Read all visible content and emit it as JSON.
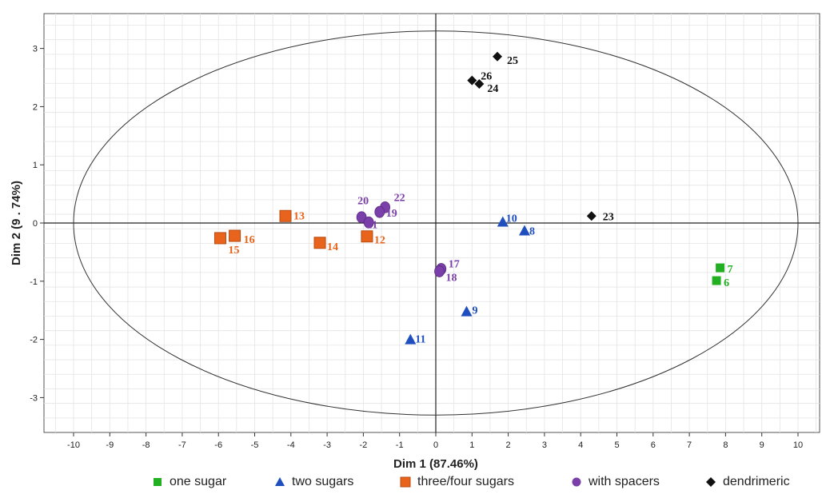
{
  "chart_data": {
    "type": "scatter",
    "title": "",
    "xlabel": "Dim 1  (87.46%)",
    "ylabel": "Dim 2 (9 . 74%)",
    "xlim": [
      -10.5,
      10.5
    ],
    "ylim": [
      -3.6,
      3.6
    ],
    "x_ticks": [
      -10,
      -9,
      -8,
      -7,
      -6,
      -5,
      -4,
      -3,
      -2,
      -1,
      0,
      1,
      2,
      3,
      4,
      5,
      6,
      7,
      8,
      9,
      10
    ],
    "y_ticks": [
      -3,
      -2,
      -1,
      0,
      1,
      2,
      3
    ],
    "grid": true,
    "ellipse": {
      "center": [
        0,
        0
      ],
      "rx": 10,
      "ry": 3.3
    },
    "legend_position": "bottom",
    "series": [
      {
        "name": "one sugar",
        "marker": "square",
        "color": "#22b022",
        "points": [
          {
            "label": "7",
            "x": 7.85,
            "y": -0.77
          },
          {
            "label": "6",
            "x": 7.75,
            "y": -0.99
          }
        ]
      },
      {
        "name": "two sugars",
        "marker": "triangle",
        "color": "#1f4fbf",
        "points": [
          {
            "label": "10",
            "x": 1.85,
            "y": 0.02
          },
          {
            "label": "8",
            "x": 2.45,
            "y": -0.13
          },
          {
            "label": "9",
            "x": 0.85,
            "y": -1.52
          },
          {
            "label": "11",
            "x": -0.7,
            "y": -2.0
          }
        ]
      },
      {
        "name": "three/four sugars",
        "marker": "square",
        "color": "#e8641c",
        "points": [
          {
            "label": "13",
            "x": -4.15,
            "y": 0.12
          },
          {
            "label": "16",
            "x": -5.55,
            "y": -0.22
          },
          {
            "label": "15",
            "x": -5.95,
            "y": -0.26
          },
          {
            "label": "14",
            "x": -3.2,
            "y": -0.34
          },
          {
            "label": "12",
            "x": -1.9,
            "y": -0.23
          }
        ]
      },
      {
        "name": "with spacers",
        "marker": "circle",
        "color": "#7a3fa8",
        "points": [
          {
            "label": "20",
            "x": -2.05,
            "y": 0.1
          },
          {
            "label": "22",
            "x": -1.4,
            "y": 0.27
          },
          {
            "label": "19",
            "x": -1.55,
            "y": 0.19
          },
          {
            "label": "21",
            "x": -1.85,
            "y": 0.01
          },
          {
            "label": "17",
            "x": 0.15,
            "y": -0.79
          },
          {
            "label": "18",
            "x": 0.1,
            "y": -0.83
          }
        ]
      },
      {
        "name": "dendrimeric",
        "marker": "diamond",
        "color": "#111111",
        "points": [
          {
            "label": "25",
            "x": 1.7,
            "y": 2.86
          },
          {
            "label": "26",
            "x": 1.0,
            "y": 2.45
          },
          {
            "label": "24",
            "x": 1.2,
            "y": 2.39
          },
          {
            "label": "23",
            "x": 4.3,
            "y": 0.12
          }
        ]
      }
    ]
  }
}
